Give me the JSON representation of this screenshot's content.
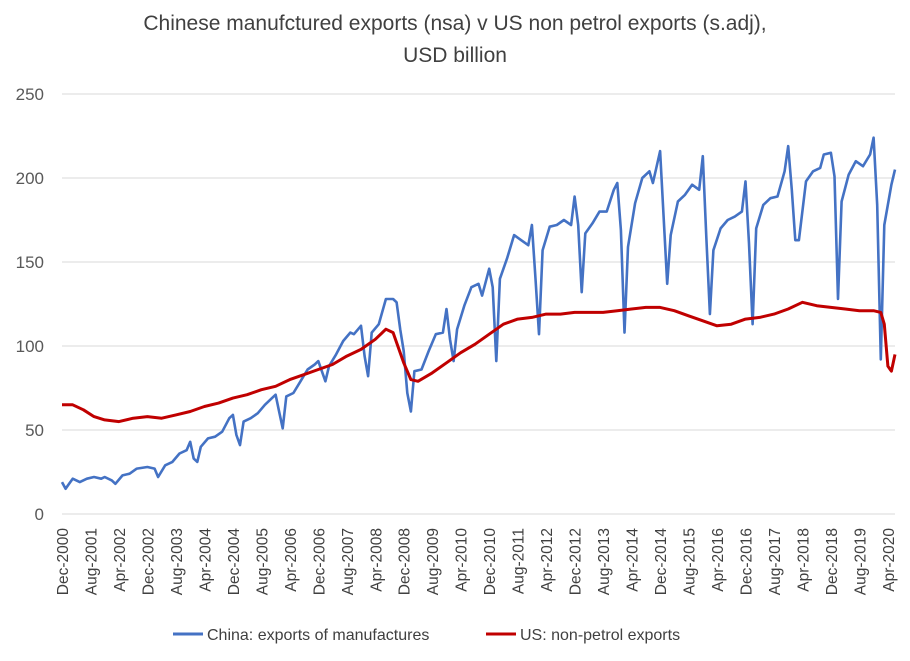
{
  "chart_data": {
    "type": "line",
    "title_lines": [
      "Chinese manufctured exports (nsa) v US non petrol exports (s.adj),",
      "USD billion"
    ],
    "xlabel": "",
    "ylabel": "",
    "ylim": [
      0,
      250
    ],
    "yticks": [
      0,
      50,
      100,
      150,
      200,
      250
    ],
    "grid": "horizontal",
    "legend_position": "bottom",
    "x_start": "2000-12",
    "x_end": "2020-06",
    "x_tick_labels": [
      "Dec-2000",
      "Aug-2001",
      "Apr-2002",
      "Dec-2002",
      "Aug-2003",
      "Apr-2004",
      "Dec-2004",
      "Aug-2005",
      "Apr-2006",
      "Dec-2006",
      "Aug-2007",
      "Apr-2008",
      "Dec-2008",
      "Aug-2009",
      "Apr-2010",
      "Dec-2010",
      "Aug-2011",
      "Apr-2012",
      "Dec-2012",
      "Aug-2013",
      "Apr-2014",
      "Dec-2014",
      "Aug-2015",
      "Apr-2016",
      "Dec-2016",
      "Aug-2017",
      "Apr-2018",
      "Dec-2018",
      "Aug-2019",
      "Apr-2020"
    ],
    "series": [
      {
        "name": "China: exports of manufactures",
        "color": "#4472C4",
        "points": [
          [
            "2000-12",
            19
          ],
          [
            "2001-01",
            15
          ],
          [
            "2001-02",
            18
          ],
          [
            "2001-03",
            21
          ],
          [
            "2001-05",
            19
          ],
          [
            "2001-07",
            21
          ],
          [
            "2001-09",
            22
          ],
          [
            "2001-11",
            21
          ],
          [
            "2001-12",
            22
          ],
          [
            "2002-02",
            20
          ],
          [
            "2002-03",
            18
          ],
          [
            "2002-05",
            23
          ],
          [
            "2002-07",
            24
          ],
          [
            "2002-09",
            27
          ],
          [
            "2002-12",
            28
          ],
          [
            "2003-02",
            27
          ],
          [
            "2003-03",
            22
          ],
          [
            "2003-05",
            29
          ],
          [
            "2003-07",
            31
          ],
          [
            "2003-09",
            36
          ],
          [
            "2003-11",
            38
          ],
          [
            "2003-12",
            43
          ],
          [
            "2004-01",
            33
          ],
          [
            "2004-02",
            31
          ],
          [
            "2004-03",
            40
          ],
          [
            "2004-05",
            45
          ],
          [
            "2004-07",
            46
          ],
          [
            "2004-09",
            49
          ],
          [
            "2004-11",
            57
          ],
          [
            "2004-12",
            59
          ],
          [
            "2005-01",
            47
          ],
          [
            "2005-02",
            41
          ],
          [
            "2005-03",
            55
          ],
          [
            "2005-05",
            57
          ],
          [
            "2005-07",
            60
          ],
          [
            "2005-09",
            65
          ],
          [
            "2005-11",
            69
          ],
          [
            "2005-12",
            71
          ],
          [
            "2006-01",
            61
          ],
          [
            "2006-02",
            51
          ],
          [
            "2006-03",
            70
          ],
          [
            "2006-05",
            72
          ],
          [
            "2006-07",
            79
          ],
          [
            "2006-09",
            86
          ],
          [
            "2006-11",
            89
          ],
          [
            "2006-12",
            91
          ],
          [
            "2007-02",
            79
          ],
          [
            "2007-03",
            88
          ],
          [
            "2007-05",
            95
          ],
          [
            "2007-07",
            103
          ],
          [
            "2007-09",
            108
          ],
          [
            "2007-10",
            107
          ],
          [
            "2007-12",
            112
          ],
          [
            "2008-01",
            94
          ],
          [
            "2008-02",
            82
          ],
          [
            "2008-03",
            108
          ],
          [
            "2008-05",
            113
          ],
          [
            "2008-07",
            128
          ],
          [
            "2008-09",
            128
          ],
          [
            "2008-10",
            126
          ],
          [
            "2008-11",
            110
          ],
          [
            "2008-12",
            97
          ],
          [
            "2009-01",
            72
          ],
          [
            "2009-02",
            61
          ],
          [
            "2009-03",
            85
          ],
          [
            "2009-05",
            86
          ],
          [
            "2009-07",
            97
          ],
          [
            "2009-09",
            107
          ],
          [
            "2009-11",
            108
          ],
          [
            "2009-12",
            122
          ],
          [
            "2010-01",
            104
          ],
          [
            "2010-02",
            91
          ],
          [
            "2010-03",
            110
          ],
          [
            "2010-05",
            124
          ],
          [
            "2010-07",
            135
          ],
          [
            "2010-09",
            137
          ],
          [
            "2010-10",
            130
          ],
          [
            "2010-12",
            146
          ],
          [
            "2011-01",
            135
          ],
          [
            "2011-02",
            91
          ],
          [
            "2011-03",
            140
          ],
          [
            "2011-05",
            152
          ],
          [
            "2011-07",
            166
          ],
          [
            "2011-09",
            163
          ],
          [
            "2011-11",
            160
          ],
          [
            "2011-12",
            172
          ],
          [
            "2012-01",
            140
          ],
          [
            "2012-02",
            107
          ],
          [
            "2012-03",
            157
          ],
          [
            "2012-05",
            171
          ],
          [
            "2012-07",
            172
          ],
          [
            "2012-09",
            175
          ],
          [
            "2012-11",
            172
          ],
          [
            "2012-12",
            189
          ],
          [
            "2013-01",
            172
          ],
          [
            "2013-02",
            132
          ],
          [
            "2013-03",
            167
          ],
          [
            "2013-05",
            173
          ],
          [
            "2013-07",
            180
          ],
          [
            "2013-09",
            180
          ],
          [
            "2013-11",
            193
          ],
          [
            "2013-12",
            197
          ],
          [
            "2014-01",
            169
          ],
          [
            "2014-02",
            108
          ],
          [
            "2014-03",
            159
          ],
          [
            "2014-05",
            185
          ],
          [
            "2014-07",
            200
          ],
          [
            "2014-09",
            204
          ],
          [
            "2014-10",
            197
          ],
          [
            "2014-12",
            216
          ],
          [
            "2015-01",
            177
          ],
          [
            "2015-02",
            137
          ],
          [
            "2015-03",
            166
          ],
          [
            "2015-05",
            186
          ],
          [
            "2015-07",
            190
          ],
          [
            "2015-09",
            196
          ],
          [
            "2015-11",
            193
          ],
          [
            "2015-12",
            213
          ],
          [
            "2016-01",
            165
          ],
          [
            "2016-02",
            119
          ],
          [
            "2016-03",
            157
          ],
          [
            "2016-05",
            170
          ],
          [
            "2016-07",
            175
          ],
          [
            "2016-09",
            177
          ],
          [
            "2016-11",
            180
          ],
          [
            "2016-12",
            198
          ],
          [
            "2017-01",
            161
          ],
          [
            "2017-02",
            113
          ],
          [
            "2017-03",
            170
          ],
          [
            "2017-05",
            184
          ],
          [
            "2017-07",
            188
          ],
          [
            "2017-09",
            189
          ],
          [
            "2017-11",
            204
          ],
          [
            "2017-12",
            219
          ],
          [
            "2018-01",
            193
          ],
          [
            "2018-02",
            163
          ],
          [
            "2018-03",
            163
          ],
          [
            "2018-05",
            198
          ],
          [
            "2018-07",
            204
          ],
          [
            "2018-09",
            206
          ],
          [
            "2018-10",
            214
          ],
          [
            "2018-12",
            215
          ],
          [
            "2019-01",
            201
          ],
          [
            "2019-02",
            128
          ],
          [
            "2019-03",
            186
          ],
          [
            "2019-05",
            202
          ],
          [
            "2019-07",
            210
          ],
          [
            "2019-09",
            207
          ],
          [
            "2019-11",
            214
          ],
          [
            "2019-12",
            224
          ],
          [
            "2020-01",
            184
          ],
          [
            "2020-02",
            92
          ],
          [
            "2020-03",
            172
          ],
          [
            "2020-05",
            196
          ],
          [
            "2020-06",
            205
          ]
        ]
      },
      {
        "name": "US: non-petrol exports",
        "color": "#C00000",
        "points": [
          [
            "2000-12",
            65
          ],
          [
            "2001-03",
            65
          ],
          [
            "2001-06",
            62
          ],
          [
            "2001-09",
            58
          ],
          [
            "2001-12",
            56
          ],
          [
            "2002-04",
            55
          ],
          [
            "2002-08",
            57
          ],
          [
            "2002-12",
            58
          ],
          [
            "2003-04",
            57
          ],
          [
            "2003-08",
            59
          ],
          [
            "2003-12",
            61
          ],
          [
            "2004-04",
            64
          ],
          [
            "2004-08",
            66
          ],
          [
            "2004-12",
            69
          ],
          [
            "2005-04",
            71
          ],
          [
            "2005-08",
            74
          ],
          [
            "2005-12",
            76
          ],
          [
            "2006-04",
            80
          ],
          [
            "2006-08",
            83
          ],
          [
            "2006-12",
            86
          ],
          [
            "2007-04",
            89
          ],
          [
            "2007-08",
            94
          ],
          [
            "2007-12",
            98
          ],
          [
            "2008-04",
            104
          ],
          [
            "2008-07",
            110
          ],
          [
            "2008-09",
            108
          ],
          [
            "2008-10",
            102
          ],
          [
            "2008-12",
            90
          ],
          [
            "2009-02",
            80
          ],
          [
            "2009-04",
            79
          ],
          [
            "2009-08",
            84
          ],
          [
            "2009-12",
            90
          ],
          [
            "2010-04",
            96
          ],
          [
            "2010-08",
            101
          ],
          [
            "2010-12",
            107
          ],
          [
            "2011-04",
            113
          ],
          [
            "2011-08",
            116
          ],
          [
            "2011-12",
            117
          ],
          [
            "2012-04",
            119
          ],
          [
            "2012-08",
            119
          ],
          [
            "2012-12",
            120
          ],
          [
            "2013-04",
            120
          ],
          [
            "2013-08",
            120
          ],
          [
            "2013-12",
            121
          ],
          [
            "2014-04",
            122
          ],
          [
            "2014-08",
            123
          ],
          [
            "2014-12",
            123
          ],
          [
            "2015-04",
            121
          ],
          [
            "2015-08",
            118
          ],
          [
            "2015-12",
            115
          ],
          [
            "2016-04",
            112
          ],
          [
            "2016-08",
            113
          ],
          [
            "2016-12",
            116
          ],
          [
            "2017-04",
            117
          ],
          [
            "2017-08",
            119
          ],
          [
            "2017-12",
            122
          ],
          [
            "2018-04",
            126
          ],
          [
            "2018-08",
            124
          ],
          [
            "2018-12",
            123
          ],
          [
            "2019-04",
            122
          ],
          [
            "2019-08",
            121
          ],
          [
            "2019-12",
            121
          ],
          [
            "2020-02",
            120
          ],
          [
            "2020-03",
            113
          ],
          [
            "2020-04",
            88
          ],
          [
            "2020-05",
            85
          ],
          [
            "2020-06",
            95
          ]
        ]
      }
    ]
  }
}
